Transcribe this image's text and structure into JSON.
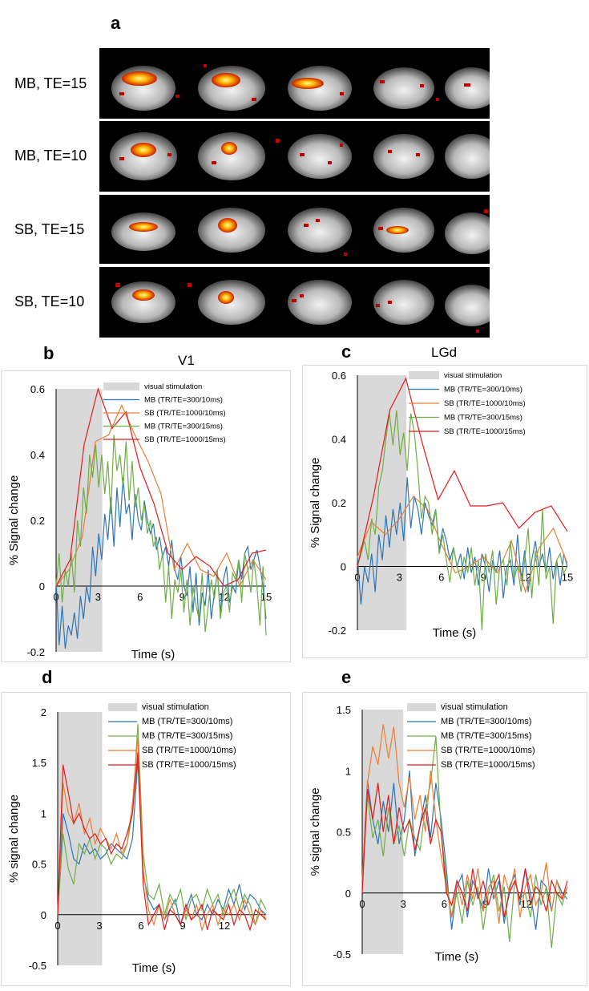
{
  "panel_a": {
    "letter": "a",
    "rows": [
      {
        "label": "MB, TE=15"
      },
      {
        "label": "MB, TE=10"
      },
      {
        "label": "SB, TE=15"
      },
      {
        "label": "SB, TE=10"
      }
    ]
  },
  "col_titles": {
    "b": "V1",
    "c": "LGd"
  },
  "letters": {
    "b": "b",
    "c": "c",
    "d": "d",
    "e": "e"
  },
  "colors": {
    "MB10": "#2e75b6",
    "SB10": "#ed7d31",
    "MB15": "#70ad47",
    "SB15": "#e41a1c",
    "stim": "#d9d9d9"
  },
  "chart_data": [
    {
      "id": "b",
      "type": "line",
      "title": "V1",
      "xlabel": "Time (s)",
      "ylabel": "% Signal change",
      "xlim": [
        0,
        15
      ],
      "ylim": [
        -0.2,
        0.6
      ],
      "xticks": [
        0,
        3,
        6,
        9,
        12,
        15
      ],
      "yticks": [
        -0.2,
        0,
        0.2,
        0.4,
        0.6
      ],
      "ytick_labels": [
        "-0.2",
        "0",
        "0.2",
        "0.4",
        "0.6"
      ],
      "stim": [
        0,
        3.3
      ],
      "legend": [
        "visual stimulation",
        "MB (TR/TE=300/10ms)",
        "SB (TR/TE=1000/10ms)",
        "MB (TR/TE=300/15ms)",
        "SB (TR/TE=1000/15ms)"
      ],
      "series": [
        {
          "name": "MB (TR/TE=300/10ms)",
          "color": "#2e75b6",
          "values": [
            0.02,
            -0.18,
            -0.06,
            -0.19,
            -0.12,
            -0.15,
            -0.08,
            -0.16,
            -0.03,
            -0.1,
            0.0,
            -0.05,
            0.12,
            0.03,
            0.16,
            0.08,
            0.22,
            0.14,
            0.27,
            0.12,
            0.3,
            0.18,
            0.33,
            0.22,
            0.25,
            0.14,
            0.28,
            0.2,
            0.17,
            0.26,
            0.2,
            0.16,
            0.19,
            0.11,
            0.15,
            0.09,
            0.12,
            0.06,
            0.14,
            0.05,
            0.02,
            0.09,
            0.0,
            -0.03,
            0.06,
            -0.08,
            0.04,
            -0.12,
            -0.02,
            -0.06,
            0.05,
            -0.1,
            -0.02,
            0.04,
            -0.08,
            0.02,
            0.06,
            -0.05,
            0.0,
            -0.02,
            0.08,
            0.02,
            0.1,
            0.12,
            0.05,
            0.08,
            0.11,
            0.06,
            0.0,
            -0.1
          ]
        },
        {
          "name": "SB (TR/TE=1000/10ms)",
          "color": "#ed7d31",
          "values": [
            0.0,
            0.05,
            0.15,
            0.44,
            0.46,
            0.55,
            0.46,
            0.38,
            0.28,
            0.05,
            0.13,
            0.05,
            0.03,
            0.1,
            0.0,
            0.08,
            0.02
          ]
        },
        {
          "name": "MB (TR/TE=300/15ms)",
          "color": "#70ad47",
          "values": [
            0.0,
            0.1,
            -0.05,
            0.05,
            0.0,
            0.1,
            -0.02,
            0.2,
            0.12,
            0.3,
            0.22,
            0.4,
            0.33,
            0.43,
            0.3,
            0.4,
            0.28,
            0.38,
            0.22,
            0.46,
            0.35,
            0.4,
            0.3,
            0.44,
            0.26,
            0.38,
            0.24,
            0.3,
            0.2,
            0.25,
            0.16,
            0.2,
            0.12,
            0.15,
            0.05,
            0.1,
            -0.05,
            0.06,
            -0.1,
            0.02,
            -0.02,
            0.05,
            -0.08,
            0.02,
            -0.12,
            0.0,
            -0.06,
            -0.1,
            0.04,
            -0.14,
            -0.06,
            0.02,
            -0.04,
            0.05,
            -0.1,
            -0.02,
            0.0,
            -0.08,
            0.04,
            0.02,
            0.08,
            -0.05,
            0.1,
            0.05,
            -0.02,
            0.08,
            0.0,
            -0.12,
            0.06,
            -0.15
          ]
        },
        {
          "name": "SB (TR/TE=1000/15ms)",
          "color": "#e41a1c",
          "values": [
            0.0,
            0.08,
            0.43,
            0.6,
            0.48,
            0.53,
            0.36,
            0.25,
            0.1,
            0.05,
            0.09,
            0.06,
            0.0,
            0.02,
            0.1,
            0.11
          ]
        }
      ]
    },
    {
      "id": "c",
      "type": "line",
      "title": "LGd",
      "xlabel": "Time (s)",
      "ylabel": "% Signal change",
      "xlim": [
        0,
        15
      ],
      "ylim": [
        -0.2,
        0.6
      ],
      "xticks": [
        0,
        3,
        6,
        9,
        12,
        15
      ],
      "yticks": [
        -0.2,
        0,
        0.2,
        0.4,
        0.6
      ],
      "ytick_labels": [
        "-0.2",
        "0",
        "0.2",
        "0.4",
        "0.6"
      ],
      "stim": [
        0,
        3.5
      ],
      "legend": [
        "visual stimulation",
        "MB (TR/TE=300/10ms)",
        "SB (TR/TE=1000/10ms)",
        "MB (TR/TE=300/15ms)",
        "SB (TR/TE=1000/15ms)"
      ],
      "series": [
        {
          "name": "MB (TR/TE=300/10ms)",
          "color": "#2e75b6",
          "values": [
            0.03,
            -0.12,
            0.0,
            -0.05,
            0.04,
            -0.08,
            0.1,
            0.02,
            0.16,
            0.06,
            0.18,
            0.1,
            0.2,
            0.08,
            0.28,
            0.12,
            0.22,
            0.18,
            0.1,
            0.2,
            0.16,
            0.13,
            0.18,
            0.05,
            0.12,
            0.08,
            0.02,
            0.06,
            0.0,
            0.04,
            -0.04,
            0.06,
            -0.02,
            0.03,
            -0.06,
            0.04,
            0.0,
            -0.08,
            0.02,
            -0.02,
            0.05,
            -0.1,
            0.0,
            0.02,
            -0.06,
            0.1,
            -0.04,
            0.05,
            -0.08,
            0.02,
            0.08,
            0.0,
            0.04,
            -0.02,
            0.06,
            -0.04,
            0.02,
            -0.06,
            0.04,
            0.0
          ]
        },
        {
          "name": "SB (TR/TE=1000/10ms)",
          "color": "#ed7d31",
          "values": [
            0.03,
            0.14,
            0.1,
            0.15,
            0.22,
            0.18,
            0.07,
            -0.02,
            0.0,
            0.03,
            -0.02,
            0.08,
            -0.08,
            0.06,
            0.12,
            0.01
          ]
        },
        {
          "name": "MB (TR/TE=300/15ms)",
          "color": "#70ad47",
          "values": [
            0.0,
            0.04,
            0.08,
            0.02,
            0.15,
            0.1,
            0.25,
            0.3,
            0.4,
            0.48,
            0.38,
            0.49,
            0.35,
            0.42,
            0.3,
            0.48,
            0.42,
            0.3,
            0.15,
            0.22,
            0.2,
            0.1,
            0.18,
            0.04,
            0.1,
            0.02,
            -0.05,
            0.06,
            0.0,
            -0.04,
            0.03,
            -0.02,
            0.06,
            -0.06,
            0.02,
            -0.2,
            0.04,
            -0.02,
            0.05,
            -0.12,
            0.0,
            0.02,
            -0.06,
            0.08,
            -0.04,
            0.0,
            -0.08,
            0.02,
            0.12,
            -0.1,
            0.05,
            -0.06,
            0.18,
            -0.04,
            0.0,
            -0.18,
            0.02,
            0.04,
            -0.02,
            0.0
          ]
        },
        {
          "name": "SB (TR/TE=1000/15ms)",
          "color": "#e41a1c",
          "values": [
            0.0,
            0.22,
            0.49,
            0.59,
            0.39,
            0.21,
            0.3,
            0.19,
            0.19,
            0.2,
            0.12,
            0.17,
            0.19,
            0.11
          ]
        }
      ]
    },
    {
      "id": "d",
      "type": "line",
      "xlabel": "Time (s)",
      "ylabel": "% signal change",
      "xlim": [
        0,
        15
      ],
      "ylim": [
        -0.5,
        2
      ],
      "xticks": [
        0,
        3,
        6,
        9,
        12
      ],
      "yticks": [
        -0.5,
        0,
        0.5,
        1,
        1.5,
        2
      ],
      "ytick_labels": [
        "-0.5",
        "0",
        "0.5",
        "1",
        "1.5",
        "2"
      ],
      "stim": [
        0,
        3.2
      ],
      "legend": [
        "visual stimulation",
        "MB (TR/TE=300/10ms)",
        "MB (TR/TE=300/15ms)",
        "SB (TR/TE=1000/10ms)",
        "SB (TR/TE=1000/15ms)"
      ],
      "series": [
        {
          "name": "MB (TR/TE=300/10ms)",
          "color": "#2e75b6",
          "values": [
            0.05,
            1.0,
            0.8,
            0.55,
            0.5,
            0.7,
            0.6,
            0.65,
            0.55,
            0.6,
            0.7,
            0.65,
            0.6,
            0.55,
            0.75,
            1.52,
            0.4,
            0.15,
            0.05,
            0.1,
            -0.05,
            0.05,
            0.15,
            -0.1,
            0.05,
            0.2,
            0.0,
            -0.05,
            0.1,
            0.0,
            0.15,
            0.05,
            0.25,
            0.1,
            0.3,
            0.05,
            0.2,
            0.15,
            0.05,
            0.0
          ]
        },
        {
          "name": "MB (TR/TE=300/15ms)",
          "color": "#70ad47",
          "values": [
            0.0,
            0.8,
            0.45,
            0.3,
            0.7,
            0.6,
            0.75,
            0.55,
            0.7,
            0.65,
            0.5,
            0.6,
            0.55,
            0.7,
            1.0,
            1.88,
            0.6,
            0.2,
            0.15,
            0.3,
            0.0,
            0.2,
            0.1,
            0.25,
            -0.05,
            0.15,
            0.2,
            0.05,
            0.25,
            0.1,
            0.2,
            0.0,
            0.15,
            0.25,
            0.05,
            0.2,
            0.1,
            -0.1,
            0.15,
            0.05
          ]
        },
        {
          "name": "SB (TR/TE=1000/10ms)",
          "color": "#ed7d31",
          "values": [
            0.0,
            1.3,
            1.0,
            0.9,
            1.1,
            0.8,
            0.95,
            0.7,
            0.85,
            0.75,
            0.65,
            0.8,
            0.6,
            0.7,
            1.1,
            1.75,
            0.45,
            0.05,
            -0.1,
            0.1,
            -0.05,
            0.15,
            0.0,
            -0.1,
            0.05,
            -0.05,
            0.1,
            -0.15,
            0.0,
            0.1,
            -0.1,
            0.05,
            0.0,
            0.1,
            -0.05,
            0.15,
            0.0,
            -0.1,
            0.05,
            -0.05
          ]
        },
        {
          "name": "SB (TR/TE=1000/15ms)",
          "color": "#e41a1c",
          "values": [
            0.0,
            1.48,
            1.2,
            0.9,
            1.0,
            0.85,
            0.75,
            0.8,
            0.7,
            0.75,
            0.6,
            0.7,
            0.65,
            0.8,
            1.0,
            1.6,
            0.3,
            -0.1,
            0.0,
            0.1,
            -0.15,
            0.05,
            0.0,
            -0.1,
            0.1,
            -0.05,
            0.0,
            0.1,
            -0.15,
            0.05,
            0.0,
            -0.05,
            0.1,
            -0.1,
            0.05,
            0.0,
            -0.15,
            0.05,
            0.0,
            -0.05
          ]
        }
      ]
    },
    {
      "id": "e",
      "type": "line",
      "xlabel": "Time (s)",
      "ylabel": "% signal change",
      "xlim": [
        0,
        15
      ],
      "ylim": [
        -0.5,
        1.5
      ],
      "xticks": [
        0,
        3,
        6,
        9,
        12
      ],
      "yticks": [
        -0.5,
        0,
        0.5,
        1,
        1.5
      ],
      "ytick_labels": [
        "-0.5",
        "0",
        "0.5",
        "1",
        "1.5"
      ],
      "stim": [
        0,
        3.0
      ],
      "legend": [
        "visual stimulation",
        "MB (TR/TE=300/10ms)",
        "MB (TR/TE=300/15ms)",
        "SB (TR/TE=1000/10ms)",
        "SB (TR/TE=1000/15ms)"
      ],
      "series": [
        {
          "name": "MB (TR/TE=300/10ms)",
          "color": "#2e75b6",
          "values": [
            0.1,
            0.92,
            0.6,
            0.4,
            0.75,
            0.5,
            0.9,
            0.4,
            0.6,
            1.0,
            0.3,
            0.55,
            0.8,
            0.45,
            0.9,
            0.6,
            0.2,
            -0.3,
            0.05,
            0.15,
            -0.2,
            0.1,
            0.0,
            -0.15,
            0.2,
            -0.05,
            0.1,
            -0.25,
            0.05,
            0.15,
            -0.1,
            0.2,
            0.0,
            -0.3,
            0.1,
            0.05,
            -0.15,
            0.1,
            0.0,
            -0.05
          ]
        },
        {
          "name": "MB (TR/TE=300/15ms)",
          "color": "#70ad47",
          "values": [
            0.05,
            0.8,
            0.45,
            0.6,
            0.3,
            0.7,
            0.4,
            0.55,
            0.3,
            0.6,
            0.45,
            0.35,
            0.7,
            0.9,
            1.28,
            0.5,
            0.1,
            -0.2,
            0.0,
            -0.25,
            0.1,
            -0.1,
            0.05,
            -0.3,
            0.0,
            0.15,
            -0.15,
            0.05,
            -0.4,
            0.1,
            -0.05,
            0.0,
            -0.2,
            0.15,
            -0.1,
            0.05,
            -0.45,
            0.0,
            -0.1,
            0.05
          ]
        },
        {
          "name": "SB (TR/TE=1000/10ms)",
          "color": "#ed7d31",
          "values": [
            0.1,
            0.9,
            1.2,
            1.05,
            1.38,
            1.1,
            1.36,
            0.9,
            0.7,
            0.95,
            0.6,
            0.8,
            0.5,
            1.0,
            0.6,
            0.3,
            0.05,
            -0.2,
            0.1,
            -0.1,
            0.15,
            -0.05,
            0.2,
            -0.15,
            0.05,
            0.1,
            -0.25,
            0.15,
            0.0,
            0.2,
            -0.2,
            0.05,
            0.15,
            -0.1,
            0.0,
            0.25,
            -0.15,
            0.1,
            -0.05,
            0.05
          ]
        },
        {
          "name": "SB (TR/TE=1000/15ms)",
          "color": "#e41a1c",
          "values": [
            0.0,
            0.85,
            0.6,
            0.9,
            0.5,
            0.8,
            0.4,
            0.7,
            0.5,
            0.6,
            0.35,
            0.55,
            0.7,
            0.4,
            0.6,
            0.5,
            0.0,
            -0.1,
            0.1,
            0.0,
            -0.15,
            0.2,
            -0.05,
            0.1,
            -0.1,
            0.05,
            0.15,
            -0.2,
            0.0,
            0.1,
            -0.05,
            0.2,
            -0.1,
            0.05,
            0.0,
            -0.15,
            0.1,
            0.0,
            -0.05,
            0.1
          ]
        }
      ]
    }
  ]
}
